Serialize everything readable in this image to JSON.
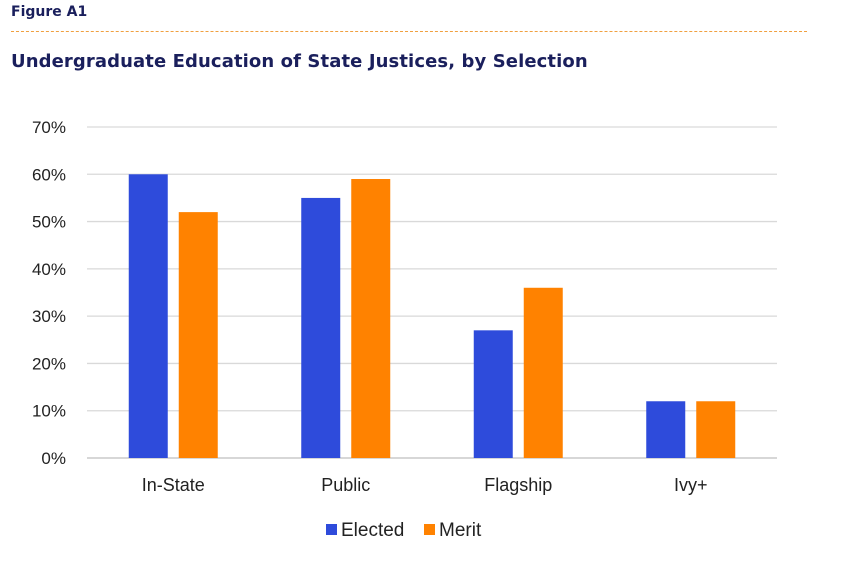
{
  "figure_label": "Figure A1",
  "title": "Undergraduate Education of State Justices, by Selection",
  "colors": {
    "elected": "#2e4bdb",
    "merit": "#ff8200",
    "grid": "#d9d9d9",
    "title": "#1a1f5c",
    "divider": "#f0a040"
  },
  "chart_data": {
    "type": "bar",
    "title": "Undergraduate Education of State Justices, by Selection",
    "xlabel": "",
    "ylabel": "",
    "categories": [
      "In-State",
      "Public",
      "Flagship",
      "Ivy+"
    ],
    "series": [
      {
        "name": "Elected",
        "color": "#2e4bdb",
        "values": [
          60,
          55,
          27,
          12
        ]
      },
      {
        "name": "Merit",
        "color": "#ff8200",
        "values": [
          52,
          59,
          36,
          12
        ]
      }
    ],
    "ylim": [
      0,
      70
    ],
    "yticks": [
      "0%",
      "10%",
      "20%",
      "30%",
      "40%",
      "50%",
      "60%",
      "70%"
    ],
    "ytick_values": [
      0,
      10,
      20,
      30,
      40,
      50,
      60,
      70
    ],
    "grid": true,
    "legend": "bottom-center"
  }
}
